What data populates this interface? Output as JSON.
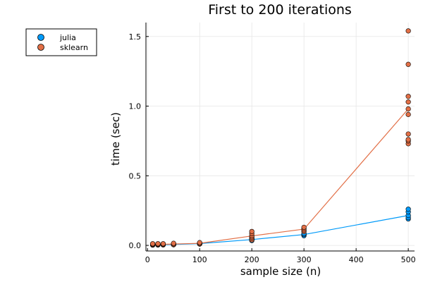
{
  "chart_data": {
    "type": "scatter",
    "title": "First to 200 iterations",
    "xlabel": "sample size (n)",
    "ylabel": "time (sec)",
    "xlim": [
      -3,
      512
    ],
    "ylim": [
      -0.04,
      1.6
    ],
    "x_ticks": [
      0,
      100,
      200,
      300,
      400,
      500
    ],
    "y_ticks": [
      0.0,
      0.5,
      1.0,
      1.5
    ],
    "x_tick_labels": [
      "0",
      "100",
      "200",
      "300",
      "400",
      "500"
    ],
    "y_tick_labels": [
      "0.0",
      "0.5",
      "1.0",
      "1.5"
    ],
    "grid": true,
    "legend_position": "outside-top-left",
    "series": [
      {
        "name": "julia",
        "color": "#009af9",
        "points": [
          [
            10,
            0.002
          ],
          [
            10,
            0.004
          ],
          [
            10,
            0.006
          ],
          [
            20,
            0.003
          ],
          [
            20,
            0.005
          ],
          [
            20,
            0.007
          ],
          [
            30,
            0.004
          ],
          [
            30,
            0.006
          ],
          [
            50,
            0.005
          ],
          [
            50,
            0.007
          ],
          [
            50,
            0.009
          ],
          [
            100,
            0.01
          ],
          [
            100,
            0.013
          ],
          [
            100,
            0.016
          ],
          [
            200,
            0.035
          ],
          [
            200,
            0.042
          ],
          [
            200,
            0.05
          ],
          [
            300,
            0.07
          ],
          [
            300,
            0.078
          ],
          [
            300,
            0.085
          ],
          [
            500,
            0.19
          ],
          [
            500,
            0.2
          ],
          [
            500,
            0.215
          ],
          [
            500,
            0.24
          ],
          [
            500,
            0.26
          ]
        ],
        "line_x": [
          10,
          20,
          30,
          50,
          100,
          200,
          300,
          500
        ],
        "line_y": [
          0.004,
          0.005,
          0.005,
          0.007,
          0.013,
          0.042,
          0.078,
          0.215
        ]
      },
      {
        "name": "sklearn",
        "color": "#e26f46",
        "points": [
          [
            10,
            0.004
          ],
          [
            10,
            0.008
          ],
          [
            10,
            0.012
          ],
          [
            20,
            0.004
          ],
          [
            20,
            0.008
          ],
          [
            20,
            0.012
          ],
          [
            30,
            0.004
          ],
          [
            30,
            0.008
          ],
          [
            30,
            0.012
          ],
          [
            50,
            0.005
          ],
          [
            50,
            0.01
          ],
          [
            50,
            0.015
          ],
          [
            100,
            0.01
          ],
          [
            100,
            0.015
          ],
          [
            100,
            0.02
          ],
          [
            200,
            0.04
          ],
          [
            200,
            0.05
          ],
          [
            200,
            0.06
          ],
          [
            200,
            0.07
          ],
          [
            200,
            0.085
          ],
          [
            200,
            0.1
          ],
          [
            300,
            0.1
          ],
          [
            300,
            0.11
          ],
          [
            300,
            0.12
          ],
          [
            300,
            0.13
          ],
          [
            500,
            0.73
          ],
          [
            500,
            0.75
          ],
          [
            500,
            0.76
          ],
          [
            500,
            0.8
          ],
          [
            500,
            0.94
          ],
          [
            500,
            0.98
          ],
          [
            500,
            1.03
          ],
          [
            500,
            1.07
          ],
          [
            500,
            1.3
          ],
          [
            500,
            1.54
          ]
        ],
        "line_x": [
          10,
          20,
          30,
          50,
          100,
          200,
          300,
          500
        ],
        "line_y": [
          0.008,
          0.008,
          0.008,
          0.01,
          0.015,
          0.068,
          0.117,
          0.98
        ]
      }
    ]
  }
}
